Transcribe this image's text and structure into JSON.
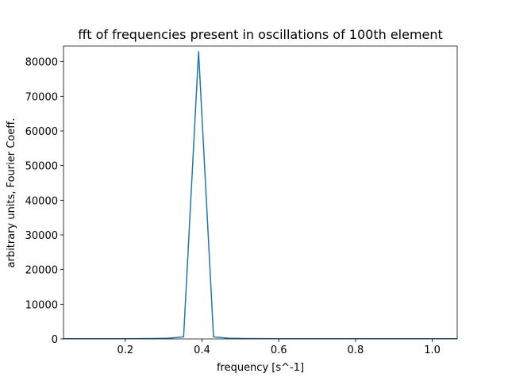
{
  "chart_data": {
    "type": "line",
    "title": "fft of frequencies present in oscillations of 100th element",
    "xlabel": "frequency [s^-1]",
    "ylabel": "arbitrary units, Fourier Coeff.",
    "xlim": [
      0.039,
      1.065
    ],
    "ylim": [
      0,
      84500
    ],
    "x_ticks": [
      0.2,
      0.4,
      0.6,
      0.8,
      1.0
    ],
    "x_tick_labels": [
      "0.2",
      "0.4",
      "0.6",
      "0.8",
      "1.0"
    ],
    "y_ticks": [
      0,
      10000,
      20000,
      30000,
      40000,
      50000,
      60000,
      70000,
      80000
    ],
    "y_tick_labels": [
      "0",
      "10000",
      "20000",
      "30000",
      "40000",
      "50000",
      "60000",
      "70000",
      "80000"
    ],
    "grid": false,
    "series": [
      {
        "color": "#1f77b4",
        "x": [
          0.039,
          0.078,
          0.117,
          0.156,
          0.195,
          0.234,
          0.273,
          0.312,
          0.352,
          0.391,
          0.43,
          0.469,
          0.508,
          0.547,
          0.586,
          0.625,
          0.664,
          0.703,
          0.742,
          0.781,
          0.82,
          0.859,
          0.898,
          0.938,
          0.977,
          1.016,
          1.055,
          1.065
        ],
        "y": [
          60,
          60,
          60,
          60,
          70,
          80,
          110,
          200,
          600,
          82900,
          600,
          200,
          110,
          80,
          70,
          60,
          60,
          60,
          50,
          50,
          50,
          50,
          50,
          50,
          50,
          50,
          50,
          50
        ]
      }
    ]
  }
}
